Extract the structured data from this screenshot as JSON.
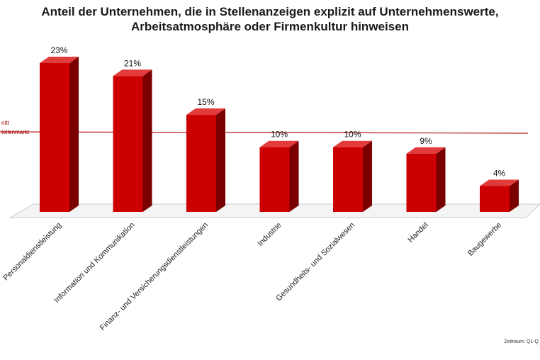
{
  "chart_data": {
    "type": "bar",
    "title_lines": [
      "Anteil der Unternehmen, die in Stellenanzeigen explizit auf Unternehmenswerte,",
      "Arbeitsatmosphäre oder Firmenkultur hinweisen"
    ],
    "categories": [
      "Personaldienstleistung",
      "Information und Kommunikation",
      "Finanz- und Versicherungsdienstleistungen",
      "Industrie",
      "Gesundheits- und Sozialwesen",
      "Handel",
      "Baugewerbe"
    ],
    "values": [
      23,
      21,
      15,
      10,
      10,
      9,
      4
    ],
    "value_labels": [
      "23%",
      "21%",
      "15%",
      "10%",
      "10%",
      "9%",
      "4%"
    ],
    "ylim": [
      0,
      25
    ],
    "reference_line": {
      "value": 11.5,
      "label_lines": [
        "nitt",
        "tellenmarkt"
      ]
    },
    "grid": false,
    "colors": {
      "bar_front": "#cc0000",
      "bar_side": "#7a0000",
      "bar_top": "#e23b3b",
      "reference_line": "#b81414",
      "reference_label": "#a00000"
    }
  },
  "footnote": "Zeitraum: Q1-Q"
}
